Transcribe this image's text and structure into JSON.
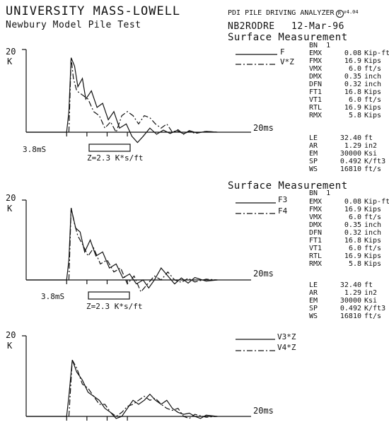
{
  "header": {
    "title": "UNIVERSITY MASS-LOWELL",
    "subtitle": "Newbury Model Pile Test",
    "analyzer": "PDI PILE DRIVING ANALYZER",
    "analyzer_mark": "R",
    "analyzer_version": "v4.04",
    "record_id": "NB2RODRE",
    "date": "12-Mar-96"
  },
  "panels": [
    {
      "heading": "Surface Measurement",
      "bn": "BN  1",
      "ymax_label": "20",
      "yunit_label": "K",
      "time_label": "20ms",
      "scale_time": "3.8mS",
      "scale_z": "Z=2.3 K*s/ft",
      "legend": [
        {
          "label": "F",
          "style": "solid"
        },
        {
          "label": "V*Z",
          "style": "dashed"
        }
      ],
      "readouts": [
        {
          "k": "EMX",
          "v": "0.08",
          "u": "Kip-ft"
        },
        {
          "k": "FMX",
          "v": "16.9",
          "u": "Kips"
        },
        {
          "k": "VMX",
          "v": "6.0",
          "u": "ft/s"
        },
        {
          "k": "DMX",
          "v": "0.35",
          "u": "inch"
        },
        {
          "k": "DFN",
          "v": "0.32",
          "u": "inch"
        },
        {
          "k": "FT1",
          "v": "16.8",
          "u": "Kips"
        },
        {
          "k": "VT1",
          "v": "6.0",
          "u": "ft/s"
        },
        {
          "k": "RTL",
          "v": "16.9",
          "u": "Kips"
        },
        {
          "k": "RMX",
          "v": "5.8",
          "u": "Kips"
        }
      ],
      "props": [
        {
          "k": "LE",
          "v": "32.40",
          "u": "ft"
        },
        {
          "k": "AR",
          "v": "1.29",
          "u": "in2"
        },
        {
          "k": "EM",
          "v": "30000",
          "u": "Ksi"
        },
        {
          "k": "SP",
          "v": "0.492",
          "u": "K/ft3"
        },
        {
          "k": "WS",
          "v": "16810",
          "u": "ft/s"
        }
      ]
    },
    {
      "heading": "Surface Measurement",
      "bn": "BN  1",
      "ymax_label": "20",
      "yunit_label": "K",
      "time_label": "20ms",
      "scale_time": "3.8mS",
      "scale_z": "Z=2.3 K*s/ft",
      "legend": [
        {
          "label": "F3",
          "style": "solid"
        },
        {
          "label": "F4",
          "style": "dashed"
        }
      ],
      "readouts": [
        {
          "k": "EMX",
          "v": "0.08",
          "u": "Kip-ft"
        },
        {
          "k": "FMX",
          "v": "16.9",
          "u": "Kips"
        },
        {
          "k": "VMX",
          "v": "6.0",
          "u": "ft/s"
        },
        {
          "k": "DMX",
          "v": "0.35",
          "u": "inch"
        },
        {
          "k": "DFN",
          "v": "0.32",
          "u": "inch"
        },
        {
          "k": "FT1",
          "v": "16.8",
          "u": "Kips"
        },
        {
          "k": "VT1",
          "v": "6.0",
          "u": "ft/s"
        },
        {
          "k": "RTL",
          "v": "16.9",
          "u": "Kips"
        },
        {
          "k": "RMX",
          "v": "5.8",
          "u": "Kips"
        }
      ],
      "props": [
        {
          "k": "LE",
          "v": "32.40",
          "u": "ft"
        },
        {
          "k": "AR",
          "v": "1.29",
          "u": "in2"
        },
        {
          "k": "EM",
          "v": "30000",
          "u": "Ksi"
        },
        {
          "k": "SP",
          "v": "0.492",
          "u": "K/ft3"
        },
        {
          "k": "WS",
          "v": "16810",
          "u": "ft/s"
        }
      ]
    },
    {
      "ymax_label": "20",
      "yunit_label": "K",
      "time_label": "20ms",
      "legend": [
        {
          "label": "V3*Z",
          "style": "solid"
        },
        {
          "label": "V4*Z",
          "style": "dashed"
        }
      ]
    }
  ],
  "chart_data": [
    {
      "type": "line",
      "xlabel": "",
      "ylabel": "K",
      "x_unit": "ms",
      "xlim": [
        0,
        20
      ],
      "ylim": [
        -3,
        20
      ],
      "series": [
        {
          "name": "F",
          "style": "solid",
          "points": [
            [
              0,
              0
            ],
            [
              3.6,
              0
            ],
            [
              3.8,
              5
            ],
            [
              4.0,
              18
            ],
            [
              4.3,
              16
            ],
            [
              4.6,
              11
            ],
            [
              5.0,
              13
            ],
            [
              5.3,
              8
            ],
            [
              5.8,
              10
            ],
            [
              6.3,
              6
            ],
            [
              6.8,
              7
            ],
            [
              7.3,
              3
            ],
            [
              7.8,
              5
            ],
            [
              8.3,
              1
            ],
            [
              8.9,
              2
            ],
            [
              9.4,
              -1
            ],
            [
              9.9,
              -2.5
            ],
            [
              10.4,
              -1
            ],
            [
              11.0,
              1
            ],
            [
              11.6,
              -0.5
            ],
            [
              12.2,
              0.5
            ],
            [
              12.8,
              -0.3
            ],
            [
              13.4,
              0.4
            ],
            [
              14.0,
              -0.4
            ],
            [
              14.6,
              0.3
            ],
            [
              15.2,
              -0.2
            ],
            [
              16.0,
              0.2
            ],
            [
              17.0,
              0
            ]
          ]
        },
        {
          "name": "V*Z",
          "style": "dashed",
          "points": [
            [
              3.8,
              0
            ],
            [
              4.0,
              18
            ],
            [
              4.2,
              13
            ],
            [
              4.5,
              10
            ],
            [
              5.0,
              9
            ],
            [
              5.5,
              8
            ],
            [
              6.0,
              5
            ],
            [
              6.5,
              4
            ],
            [
              7.0,
              1
            ],
            [
              7.5,
              2.5
            ],
            [
              8.0,
              0
            ],
            [
              8.5,
              4
            ],
            [
              9.0,
              5
            ],
            [
              9.5,
              4
            ],
            [
              10.0,
              2
            ],
            [
              10.5,
              4
            ],
            [
              11.0,
              3.5
            ],
            [
              11.5,
              2
            ],
            [
              12.0,
              1
            ],
            [
              12.5,
              2
            ],
            [
              13.0,
              0
            ],
            [
              13.5,
              0.6
            ],
            [
              14.0,
              -0.5
            ],
            [
              14.5,
              0.4
            ],
            [
              15.0,
              -0.3
            ],
            [
              16.0,
              0.2
            ],
            [
              17.0,
              0
            ]
          ]
        }
      ]
    },
    {
      "type": "line",
      "xlabel": "",
      "ylabel": "K",
      "x_unit": "ms",
      "xlim": [
        0,
        20
      ],
      "ylim": [
        -3,
        20
      ],
      "series": [
        {
          "name": "F3",
          "style": "solid",
          "points": [
            [
              0,
              0
            ],
            [
              3.6,
              0
            ],
            [
              3.8,
              5
            ],
            [
              4.0,
              18
            ],
            [
              4.4,
              13
            ],
            [
              4.8,
              12
            ],
            [
              5.2,
              7
            ],
            [
              5.7,
              10
            ],
            [
              6.2,
              6
            ],
            [
              6.8,
              7
            ],
            [
              7.4,
              3
            ],
            [
              8.0,
              4
            ],
            [
              8.6,
              0.5
            ],
            [
              9.2,
              1.5
            ],
            [
              9.8,
              -1
            ],
            [
              10.4,
              0
            ],
            [
              10.9,
              -2
            ],
            [
              11.4,
              0
            ],
            [
              12.0,
              3
            ],
            [
              12.6,
              1
            ],
            [
              13.2,
              -1
            ],
            [
              13.8,
              0.5
            ],
            [
              14.4,
              -0.8
            ],
            [
              15.0,
              0.6
            ],
            [
              16.0,
              -0.3
            ],
            [
              17.0,
              0
            ]
          ]
        },
        {
          "name": "F4",
          "style": "dashed",
          "points": [
            [
              3.8,
              0
            ],
            [
              4.0,
              18
            ],
            [
              4.3,
              14
            ],
            [
              4.6,
              11
            ],
            [
              5.0,
              9
            ],
            [
              5.5,
              6
            ],
            [
              6.0,
              8
            ],
            [
              6.6,
              4
            ],
            [
              7.2,
              5
            ],
            [
              7.8,
              2
            ],
            [
              8.4,
              3
            ],
            [
              9.0,
              -1
            ],
            [
              9.6,
              1
            ],
            [
              10.2,
              -3
            ],
            [
              10.8,
              -1
            ],
            [
              11.4,
              1
            ],
            [
              12.0,
              0
            ],
            [
              12.6,
              2
            ],
            [
              13.2,
              0
            ],
            [
              13.8,
              -0.6
            ],
            [
              14.4,
              0.4
            ],
            [
              15.0,
              -0.5
            ],
            [
              16.0,
              0.2
            ],
            [
              17.0,
              0
            ]
          ]
        }
      ]
    },
    {
      "type": "line",
      "xlabel": "",
      "ylabel": "K",
      "x_unit": "ms",
      "xlim": [
        0,
        20
      ],
      "ylim": [
        -3,
        20
      ],
      "series": [
        {
          "name": "V3*Z",
          "style": "solid",
          "points": [
            [
              0,
              0
            ],
            [
              3.6,
              0
            ],
            [
              3.8,
              5
            ],
            [
              4.1,
              14
            ],
            [
              4.5,
              11
            ],
            [
              5.0,
              9
            ],
            [
              5.5,
              6
            ],
            [
              6.0,
              5
            ],
            [
              6.5,
              4
            ],
            [
              7.0,
              2
            ],
            [
              7.5,
              1
            ],
            [
              8.0,
              -0.5
            ],
            [
              8.5,
              0
            ],
            [
              9.0,
              2
            ],
            [
              9.5,
              4
            ],
            [
              10.0,
              3
            ],
            [
              10.5,
              4
            ],
            [
              11.0,
              5.5
            ],
            [
              11.5,
              4
            ],
            [
              12.0,
              3
            ],
            [
              12.5,
              4
            ],
            [
              13.0,
              2
            ],
            [
              13.5,
              1
            ],
            [
              14.0,
              0.5
            ],
            [
              14.5,
              0.8
            ],
            [
              15.0,
              0
            ],
            [
              15.5,
              -0.5
            ],
            [
              16.0,
              0.3
            ],
            [
              17.0,
              0
            ]
          ]
        },
        {
          "name": "V4*Z",
          "style": "dashed",
          "points": [
            [
              3.8,
              0
            ],
            [
              4.1,
              14
            ],
            [
              4.5,
              12
            ],
            [
              5.0,
              8
            ],
            [
              5.5,
              7
            ],
            [
              6.0,
              5
            ],
            [
              6.5,
              3
            ],
            [
              7.0,
              3
            ],
            [
              7.5,
              1
            ],
            [
              8.0,
              0
            ],
            [
              8.5,
              1
            ],
            [
              9.0,
              2.5
            ],
            [
              9.5,
              3
            ],
            [
              10.0,
              4
            ],
            [
              10.5,
              5
            ],
            [
              11.0,
              4
            ],
            [
              11.5,
              4.5
            ],
            [
              12.0,
              3
            ],
            [
              12.5,
              2
            ],
            [
              13.0,
              1.5
            ],
            [
              13.5,
              2
            ],
            [
              14.0,
              0
            ],
            [
              14.5,
              -0.5
            ],
            [
              15.0,
              0.5
            ],
            [
              16.0,
              -0.2
            ],
            [
              17.0,
              0
            ]
          ]
        }
      ]
    }
  ]
}
